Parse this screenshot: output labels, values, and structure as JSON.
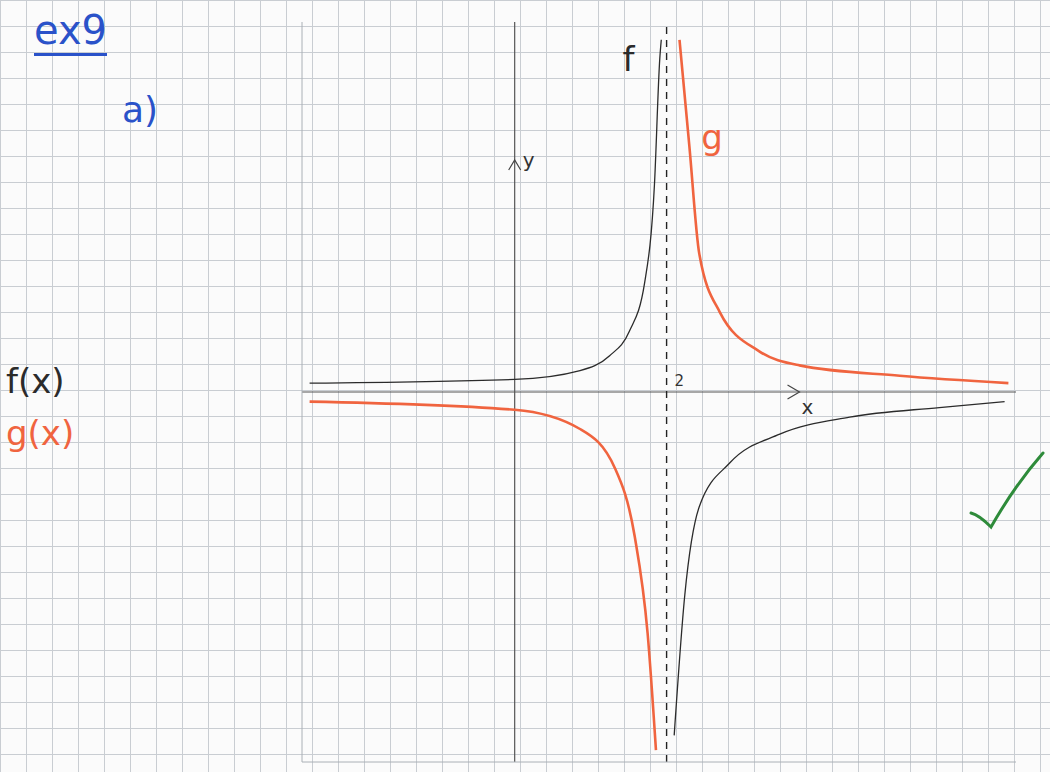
{
  "chart_data": {
    "type": "line",
    "title": "ex9",
    "subtitle": "a)",
    "x_label": "x",
    "y_label": "y",
    "xlim": [
      -2.8,
      6.6
    ],
    "ylim": [
      -5,
      5
    ],
    "xticks": [
      2
    ],
    "yticks": [],
    "tick_labels": "x",
    "legend": "left",
    "vertical_asymptote": 2,
    "series": [
      {
        "name": "f(x)",
        "color": "#2b2b2b",
        "x": [
          -2.7,
          0,
          0.86,
          1.25,
          1.51,
          1.71,
          1.84,
          1.91,
          1.93,
          2,
          2.1,
          2.24,
          2.43,
          2.83,
          3.49,
          4.41,
          5.59,
          6.45
        ],
        "values": [
          0.12,
          0.17,
          0.29,
          0.49,
          0.82,
          1.47,
          2.8,
          4.5,
          4.76,
          null,
          -4.64,
          -2.74,
          -1.55,
          -0.96,
          -0.57,
          -0.34,
          -0.21,
          -0.13
        ]
      },
      {
        "name": "g(x)",
        "color": "#f0643f",
        "x": [
          -2.7,
          0,
          0.86,
          1.32,
          1.58,
          1.75,
          1.86,
          2,
          2.17,
          2.3,
          2.43,
          2.7,
          3.22,
          3.75,
          5.07,
          6.5
        ],
        "values": [
          -0.13,
          -0.24,
          -0.5,
          -1.03,
          -1.95,
          -3.26,
          -4.84,
          null,
          4.76,
          3.32,
          1.87,
          1.08,
          0.55,
          0.36,
          0.22,
          0.12
        ]
      }
    ],
    "annotations": [
      {
        "text": "f",
        "x": 1.5,
        "y": 4.5,
        "color": "#2b2b2b"
      },
      {
        "text": "g",
        "x": 2.6,
        "y": 3.45,
        "color": "#f0643f"
      }
    ]
  }
}
